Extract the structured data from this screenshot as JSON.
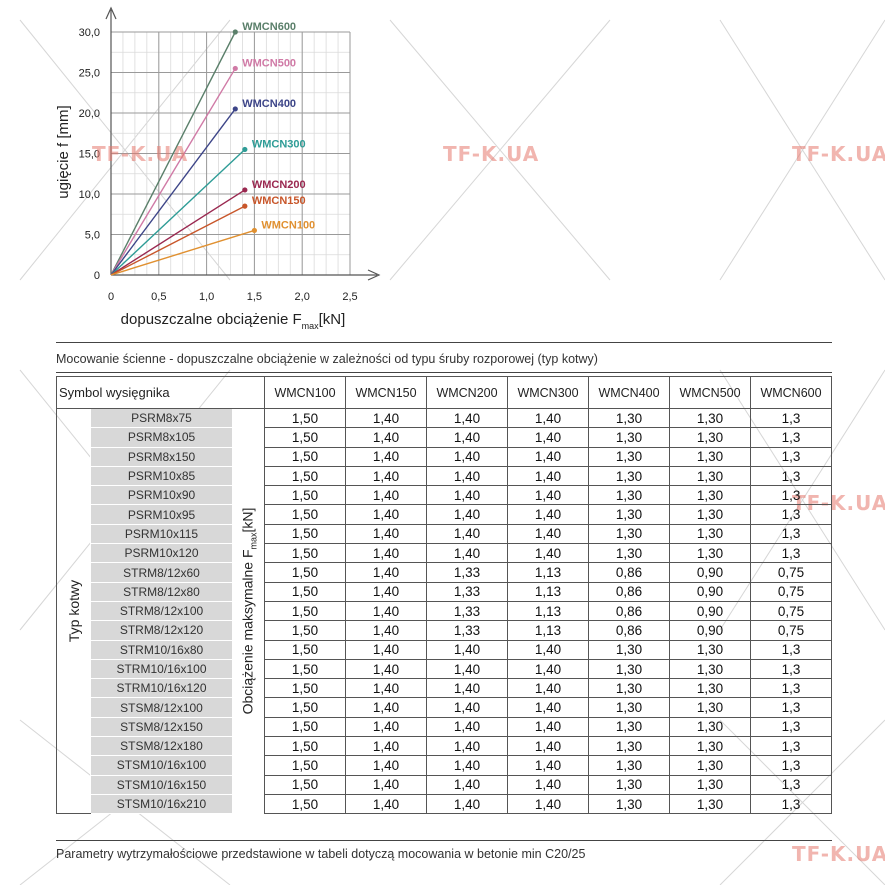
{
  "watermark": "TF-K.UA",
  "chart_data": {
    "type": "line",
    "ylabel": "ugięcie f [mm]",
    "xlabel_main": "dopuszczalne obciążenie F",
    "xlabel_sub": "max",
    "xlabel_unit": "[kN]",
    "xlim": [
      0,
      2.5
    ],
    "ylim": [
      0,
      30
    ],
    "x_ticks": [
      "0",
      "0,5",
      "1,0",
      "1,5",
      "2,0",
      "2,5"
    ],
    "y_ticks": [
      "0",
      "5,0",
      "10,0",
      "15,0",
      "20,0",
      "25,0",
      "30,0"
    ],
    "series": [
      {
        "name": "WMCN600",
        "color": "#5a7f6a",
        "x": [
          0,
          1.3
        ],
        "y": [
          0,
          30.0
        ]
      },
      {
        "name": "WMCN500",
        "color": "#d07aa6",
        "x": [
          0,
          1.3
        ],
        "y": [
          0,
          25.5
        ]
      },
      {
        "name": "WMCN400",
        "color": "#3d4588",
        "x": [
          0,
          1.3
        ],
        "y": [
          0,
          20.5
        ]
      },
      {
        "name": "WMCN300",
        "color": "#2e9c96",
        "x": [
          0,
          1.4
        ],
        "y": [
          0,
          15.5
        ]
      },
      {
        "name": "WMCN200",
        "color": "#9a2850",
        "x": [
          0,
          1.4
        ],
        "y": [
          0,
          10.5
        ]
      },
      {
        "name": "WMCN150",
        "color": "#c8562a",
        "x": [
          0,
          1.4
        ],
        "y": [
          0,
          8.5
        ]
      },
      {
        "name": "WMCN100",
        "color": "#e09030",
        "x": [
          0,
          1.5
        ],
        "y": [
          0,
          5.5
        ]
      }
    ]
  },
  "table_title": "Mocowanie ścienne - dopuszczalne obciążenie w zależności od typu śruby rozporowej (typ kotwy)",
  "table": {
    "symbol_label": "Symbol wysięgnika",
    "type_label": "Typ kotwy",
    "load_label_main": "Obciążenie maksymalne F",
    "load_label_sub": "max",
    "load_label_unit": "[kN]",
    "columns": [
      "WMCN100",
      "WMCN150",
      "WMCN200",
      "WMCN300",
      "WMCN400",
      "WMCN500",
      "WMCN600"
    ],
    "rows": [
      {
        "anchor": "PSRM8x75",
        "values": [
          "1,50",
          "1,40",
          "1,40",
          "1,40",
          "1,30",
          "1,30",
          "1,3"
        ]
      },
      {
        "anchor": "PSRM8x105",
        "values": [
          "1,50",
          "1,40",
          "1,40",
          "1,40",
          "1,30",
          "1,30",
          "1,3"
        ]
      },
      {
        "anchor": "PSRM8x150",
        "values": [
          "1,50",
          "1,40",
          "1,40",
          "1,40",
          "1,30",
          "1,30",
          "1,3"
        ]
      },
      {
        "anchor": "PSRM10x85",
        "values": [
          "1,50",
          "1,40",
          "1,40",
          "1,40",
          "1,30",
          "1,30",
          "1,3"
        ]
      },
      {
        "anchor": "PSRM10x90",
        "values": [
          "1,50",
          "1,40",
          "1,40",
          "1,40",
          "1,30",
          "1,30",
          "1,3"
        ]
      },
      {
        "anchor": "PSRM10x95",
        "values": [
          "1,50",
          "1,40",
          "1,40",
          "1,40",
          "1,30",
          "1,30",
          "1,3"
        ]
      },
      {
        "anchor": "PSRM10x115",
        "values": [
          "1,50",
          "1,40",
          "1,40",
          "1,40",
          "1,30",
          "1,30",
          "1,3"
        ]
      },
      {
        "anchor": "PSRM10x120",
        "values": [
          "1,50",
          "1,40",
          "1,40",
          "1,40",
          "1,30",
          "1,30",
          "1,3"
        ]
      },
      {
        "anchor": "STRM8/12x60",
        "values": [
          "1,50",
          "1,40",
          "1,33",
          "1,13",
          "0,86",
          "0,90",
          "0,75"
        ]
      },
      {
        "anchor": "STRM8/12x80",
        "values": [
          "1,50",
          "1,40",
          "1,33",
          "1,13",
          "0,86",
          "0,90",
          "0,75"
        ]
      },
      {
        "anchor": "STRM8/12x100",
        "values": [
          "1,50",
          "1,40",
          "1,33",
          "1,13",
          "0,86",
          "0,90",
          "0,75"
        ]
      },
      {
        "anchor": "STRM8/12x120",
        "values": [
          "1,50",
          "1,40",
          "1,33",
          "1,13",
          "0,86",
          "0,90",
          "0,75"
        ]
      },
      {
        "anchor": "STRM10/16x80",
        "values": [
          "1,50",
          "1,40",
          "1,40",
          "1,40",
          "1,30",
          "1,30",
          "1,3"
        ]
      },
      {
        "anchor": "STRM10/16x100",
        "values": [
          "1,50",
          "1,40",
          "1,40",
          "1,40",
          "1,30",
          "1,30",
          "1,3"
        ]
      },
      {
        "anchor": "STRM10/16x120",
        "values": [
          "1,50",
          "1,40",
          "1,40",
          "1,40",
          "1,30",
          "1,30",
          "1,3"
        ]
      },
      {
        "anchor": "STSM8/12x100",
        "values": [
          "1,50",
          "1,40",
          "1,40",
          "1,40",
          "1,30",
          "1,30",
          "1,3"
        ]
      },
      {
        "anchor": "STSM8/12x150",
        "values": [
          "1,50",
          "1,40",
          "1,40",
          "1,40",
          "1,30",
          "1,30",
          "1,3"
        ]
      },
      {
        "anchor": "STSM8/12x180",
        "values": [
          "1,50",
          "1,40",
          "1,40",
          "1,40",
          "1,30",
          "1,30",
          "1,3"
        ]
      },
      {
        "anchor": "STSM10/16x100",
        "values": [
          "1,50",
          "1,40",
          "1,40",
          "1,40",
          "1,30",
          "1,30",
          "1,3"
        ]
      },
      {
        "anchor": "STSM10/16x150",
        "values": [
          "1,50",
          "1,40",
          "1,40",
          "1,40",
          "1,30",
          "1,30",
          "1,3"
        ]
      },
      {
        "anchor": "STSM10/16x210",
        "values": [
          "1,50",
          "1,40",
          "1,40",
          "1,40",
          "1,30",
          "1,30",
          "1,3"
        ]
      }
    ]
  },
  "footnote": "Parametry wytrzymałościowe przedstawione w tabeli dotyczą mocowania w betonie min C20/25"
}
